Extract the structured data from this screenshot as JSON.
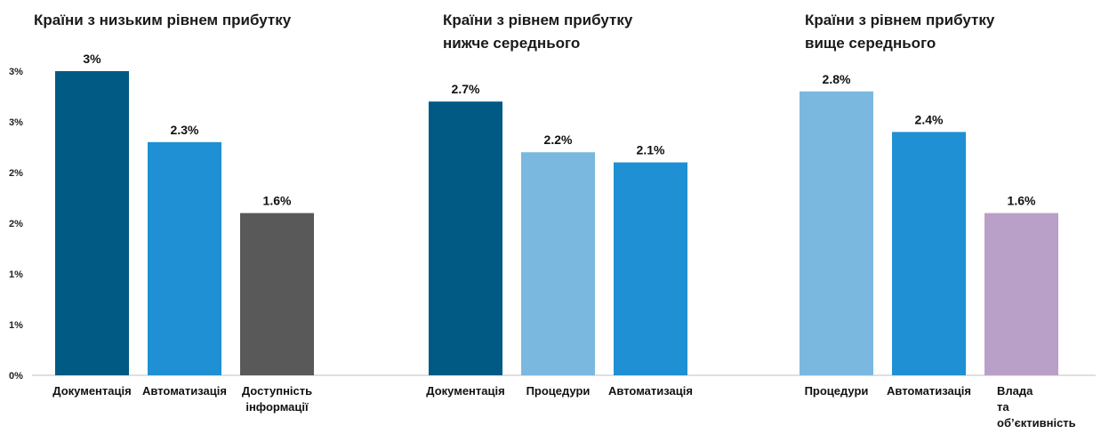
{
  "panels": [
    {
      "title_lines": [
        "Країни з низьким рівнем прибутку"
      ]
    },
    {
      "title_lines": [
        "Країни з рівнем прибутку",
        "нижче середнього"
      ]
    },
    {
      "title_lines": [
        "Країни з рівнем прибутку",
        "вище середнього"
      ]
    }
  ],
  "chart_data": {
    "type": "bar",
    "y_tick_labels": [
      "0%",
      "1%",
      "1%",
      "2%",
      "2%",
      "3%",
      "3%"
    ],
    "y_tick_values": [
      0,
      0.5,
      1.0,
      1.5,
      2.0,
      2.5,
      3.0
    ],
    "ylim": [
      0,
      3.0
    ],
    "grid": false,
    "groups": [
      {
        "categories": [
          "Документація",
          "Автоматизація",
          "Доступність інформації"
        ],
        "values": [
          3.0,
          2.3,
          1.6
        ],
        "labels": [
          "3%",
          "2.3%",
          "1.6%"
        ],
        "colors": [
          "#005a83",
          "#1e90d3",
          "#595959"
        ]
      },
      {
        "categories": [
          "Документація",
          "Процедури",
          "Автоматизація"
        ],
        "values": [
          2.7,
          2.2,
          2.1
        ],
        "labels": [
          "2.7%",
          "2.2%",
          "2.1%"
        ],
        "colors": [
          "#005a83",
          "#7bb8e0",
          "#1e90d3"
        ]
      },
      {
        "categories": [
          "Процедури",
          "Автоматизація",
          "Влада та об’єктивність"
        ],
        "values": [
          2.8,
          2.4,
          1.6
        ],
        "labels": [
          "2.8%",
          "2.4%",
          "1.6%"
        ],
        "colors": [
          "#7bb8e0",
          "#1e90d3",
          "#b9a0c8"
        ]
      }
    ]
  }
}
